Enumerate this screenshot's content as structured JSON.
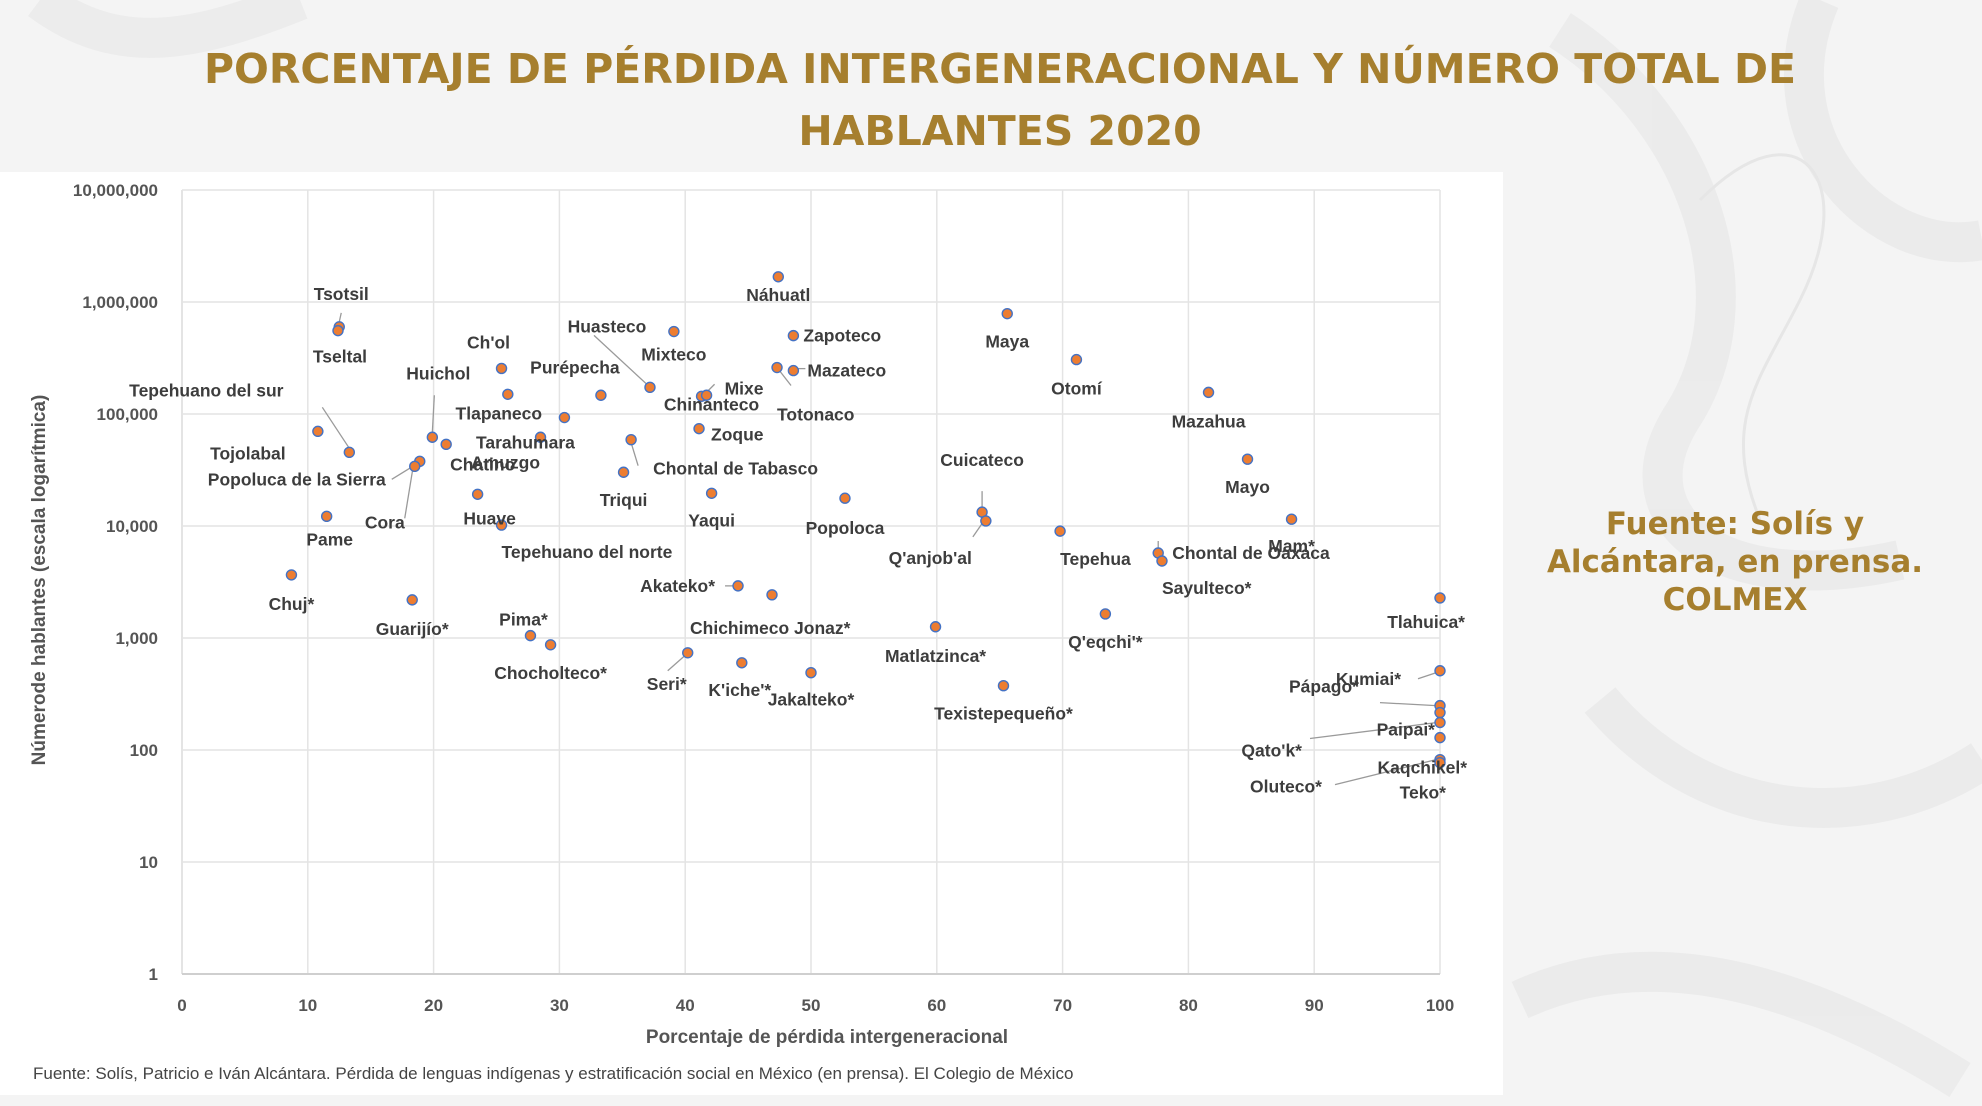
{
  "title_lines": [
    "PORCENTAJE DE PÉRDIDA INTERGENERACIONAL Y NÚMERO TOTAL DE",
    "HABLANTES 2020"
  ],
  "side_note": [
    "Fuente: Solís y",
    "Alcántara, en prensa.",
    "COLMEX"
  ],
  "footer_source": "Fuente: Solís, Patricio e Iván Alcántara. Pérdida de lenguas indígenas y estratificación social en México (en prensa). El Colegio de México",
  "colors": {
    "title": "#a67f2e",
    "marker_fill": "#ed7d31",
    "marker_stroke": "#4472c4",
    "grid": "#e4e4e4",
    "leader_line": "#9a9a9a"
  },
  "chart_data": {
    "type": "scatter",
    "title": "PORCENTAJE DE PÉRDIDA INTERGENERACIONAL Y NÚMERO TOTAL DE HABLANTES 2020",
    "xlabel": "Porcentaje de pérdida intergeneracional",
    "ylabel": "Númerode hablantes (escala logarítmica)",
    "xlim": [
      0,
      100
    ],
    "ylim": [
      1,
      10000000
    ],
    "yscale": "log",
    "grid": true,
    "legend": "none",
    "x_ticks": [
      "0",
      "10",
      "20",
      "30",
      "40",
      "50",
      "60",
      "70",
      "80",
      "90",
      "100"
    ],
    "y_ticks": [
      "1",
      "10",
      "100",
      "1,000",
      "10,000",
      "100,000",
      "1,000,000",
      "10,000,000"
    ],
    "points": [
      {
        "label": "Tsotsil",
        "x": 12.5,
        "y": 600000
      },
      {
        "label": "Tseltal",
        "x": 12.4,
        "y": 555000
      },
      {
        "label": "Tojolabal",
        "x": 10.8,
        "y": 70000
      },
      {
        "label": "Tepehuano del sur",
        "x": 13.3,
        "y": 45500
      },
      {
        "label": "Huichol",
        "x": 19.9,
        "y": 62000
      },
      {
        "label": "Chatino",
        "x": 21.0,
        "y": 53600
      },
      {
        "label": "Popoluca de la Sierra",
        "x": 18.9,
        "y": 37800
      },
      {
        "label": "Cora",
        "x": 18.5,
        "y": 34100
      },
      {
        "label": "Ch'ol",
        "x": 25.4,
        "y": 255000
      },
      {
        "label": "Tlapaneco",
        "x": 25.9,
        "y": 150000
      },
      {
        "label": "Tarahumara",
        "x": 30.4,
        "y": 93000
      },
      {
        "label": "Amuzgo",
        "x": 28.5,
        "y": 62000
      },
      {
        "label": "Purépecha",
        "x": 33.3,
        "y": 147000
      },
      {
        "label": "Huasteco",
        "x": 37.2,
        "y": 173000
      },
      {
        "label": "Mixteco",
        "x": 39.1,
        "y": 545000
      },
      {
        "label": "Chinanteco",
        "x": 41.3,
        "y": 144000
      },
      {
        "label": "Mixe",
        "x": 41.7,
        "y": 147000
      },
      {
        "label": "Zoque",
        "x": 41.1,
        "y": 74000
      },
      {
        "label": "Náhuatl",
        "x": 47.4,
        "y": 1680000
      },
      {
        "label": "Zapoteco",
        "x": 48.6,
        "y": 501000
      },
      {
        "label": "Totonaco",
        "x": 47.3,
        "y": 260000
      },
      {
        "label": "Mazateco",
        "x": 48.6,
        "y": 244000
      },
      {
        "label": "Chontal de Tabasco",
        "x": 35.7,
        "y": 59000
      },
      {
        "label": "Triqui",
        "x": 35.1,
        "y": 30200
      },
      {
        "label": "Huave",
        "x": 23.5,
        "y": 19200
      },
      {
        "label": "Tepehuano del norte",
        "x": 25.4,
        "y": 10200
      },
      {
        "label": "Pame",
        "x": 11.5,
        "y": 12200
      },
      {
        "label": "Yaqui",
        "x": 42.1,
        "y": 19600
      },
      {
        "label": "Popoloca",
        "x": 52.7,
        "y": 17700
      },
      {
        "label": "Chuj*",
        "x": 8.7,
        "y": 3660
      },
      {
        "label": "Guarijío*",
        "x": 18.3,
        "y": 2190
      },
      {
        "label": "Pima*",
        "x": 27.7,
        "y": 1050
      },
      {
        "label": "Chocholteco*",
        "x": 29.3,
        "y": 870
      },
      {
        "label": "Akateko*",
        "x": 44.2,
        "y": 2920
      },
      {
        "label": "Chichimeco Jonaz*",
        "x": 46.9,
        "y": 2430
      },
      {
        "label": "Seri*",
        "x": 40.2,
        "y": 738
      },
      {
        "label": "K'iche'*",
        "x": 44.5,
        "y": 601
      },
      {
        "label": "Jakalteko*",
        "x": 50.0,
        "y": 490
      },
      {
        "label": "Matlatzinca*",
        "x": 59.9,
        "y": 1260
      },
      {
        "label": "Texistepequeño*",
        "x": 65.3,
        "y": 375
      },
      {
        "label": "Maya",
        "x": 65.6,
        "y": 787000
      },
      {
        "label": "Otomí",
        "x": 71.1,
        "y": 306000
      },
      {
        "label": "Mazahua",
        "x": 81.6,
        "y": 156000
      },
      {
        "label": "Mayo",
        "x": 84.7,
        "y": 39500
      },
      {
        "label": "Mam*",
        "x": 88.2,
        "y": 11500
      },
      {
        "label": "Cuicateco",
        "x": 63.6,
        "y": 13300
      },
      {
        "label": "Q'anjob'al",
        "x": 63.9,
        "y": 11100
      },
      {
        "label": "Tepehua",
        "x": 69.8,
        "y": 9000
      },
      {
        "label": "Chontal de Oaxaca",
        "x": 77.6,
        "y": 5740
      },
      {
        "label": "Sayulteco*",
        "x": 77.9,
        "y": 4870
      },
      {
        "label": "Q'eqchi'*",
        "x": 73.4,
        "y": 1640
      },
      {
        "label": "Tlahuica*",
        "x": 100,
        "y": 2280
      },
      {
        "label": "Kumiai*",
        "x": 100,
        "y": 510
      },
      {
        "label": "Pápago*",
        "x": 100,
        "y": 249
      },
      {
        "label": "Paipai*",
        "x": 100,
        "y": 216
      },
      {
        "label": "Qato'k*",
        "x": 100,
        "y": 176
      },
      {
        "label": "Kaqchikel*",
        "x": 100,
        "y": 129
      },
      {
        "label": "Oluteco*",
        "x": 100,
        "y": 82
      },
      {
        "label": "Teko*",
        "x": 100,
        "y": 77
      }
    ]
  }
}
